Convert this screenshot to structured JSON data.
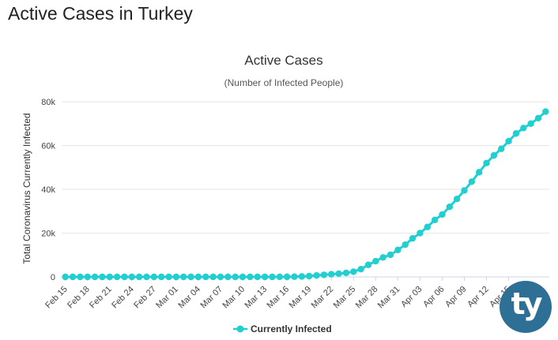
{
  "page": {
    "heading": "Active Cases in Turkey",
    "logo_text": "ty"
  },
  "colors": {
    "series": "#22cfd0",
    "grid": "#e6e6e6",
    "axis": "#ccd6eb",
    "logo": "#2e6f95"
  },
  "chart_data": {
    "type": "line",
    "title": "Active Cases",
    "subtitle": "(Number of Infected People)",
    "ylabel": "Total Coronavirus Currently Infected",
    "xlabel": "",
    "ylim": [
      0,
      80000
    ],
    "yticks": [
      0,
      20000,
      40000,
      60000,
      80000
    ],
    "ytick_labels": [
      "0",
      "20k",
      "40k",
      "60k",
      "80k"
    ],
    "grid": true,
    "legend": "bottom",
    "x_tick_labels": [
      "Feb 15",
      "Feb 18",
      "Feb 21",
      "Feb 24",
      "Feb 27",
      "Mar 01",
      "Mar 04",
      "Mar 07",
      "Mar 10",
      "Mar 13",
      "Mar 16",
      "Mar 19",
      "Mar 22",
      "Mar 25",
      "Mar 28",
      "Mar 31",
      "Apr 03",
      "Apr 06",
      "Apr 09",
      "Apr 12",
      "Apr 15"
    ],
    "x": [
      "Feb 15",
      "Feb 16",
      "Feb 17",
      "Feb 18",
      "Feb 19",
      "Feb 20",
      "Feb 21",
      "Feb 22",
      "Feb 23",
      "Feb 24",
      "Feb 25",
      "Feb 26",
      "Feb 27",
      "Feb 28",
      "Feb 29",
      "Mar 01",
      "Mar 02",
      "Mar 03",
      "Mar 04",
      "Mar 05",
      "Mar 06",
      "Mar 07",
      "Mar 08",
      "Mar 09",
      "Mar 10",
      "Mar 11",
      "Mar 12",
      "Mar 13",
      "Mar 14",
      "Mar 15",
      "Mar 16",
      "Mar 17",
      "Mar 18",
      "Mar 19",
      "Mar 20",
      "Mar 21",
      "Mar 22",
      "Mar 23",
      "Mar 24",
      "Mar 25",
      "Mar 26",
      "Mar 27",
      "Mar 28",
      "Mar 29",
      "Mar 30",
      "Mar 31",
      "Apr 01",
      "Apr 02",
      "Apr 03",
      "Apr 04",
      "Apr 05",
      "Apr 06",
      "Apr 07",
      "Apr 08",
      "Apr 09",
      "Apr 10",
      "Apr 11",
      "Apr 12",
      "Apr 13",
      "Apr 14",
      "Apr 15",
      "Apr 16",
      "Apr 17",
      "Apr 18",
      "Apr 19",
      "Apr 20"
    ],
    "series": [
      {
        "name": "Currently Infected",
        "values": [
          0,
          0,
          0,
          0,
          0,
          0,
          0,
          0,
          0,
          0,
          0,
          0,
          0,
          0,
          0,
          0,
          0,
          0,
          0,
          0,
          0,
          0,
          0,
          0,
          0,
          1,
          1,
          5,
          6,
          18,
          47,
          98,
          190,
          358,
          666,
          935,
          1225,
          1472,
          1820,
          2380,
          3526,
          5500,
          7200,
          8900,
          10100,
          12300,
          14700,
          17600,
          20000,
          22800,
          26000,
          28500,
          32000,
          35600,
          39500,
          43500,
          47800,
          52000,
          55500,
          58500,
          62000,
          65500,
          68000,
          70000,
          72500,
          75500
        ]
      }
    ]
  }
}
